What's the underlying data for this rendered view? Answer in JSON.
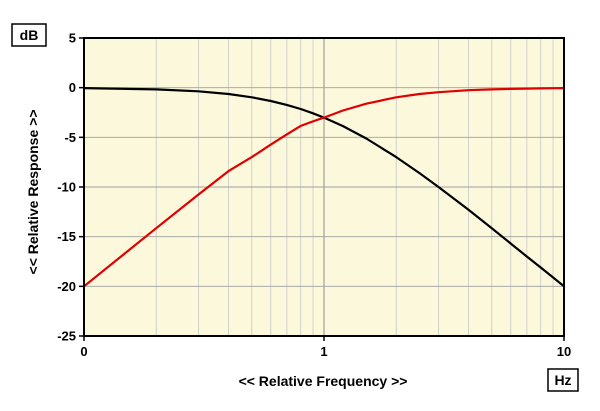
{
  "chart_data": {
    "type": "line",
    "title": "",
    "xlabel": "<< Relative Frequency >>",
    "ylabel": "<< Relative Response >>",
    "x_unit": "Hz",
    "y_unit": "dB",
    "x_scale": "log",
    "xlim": [
      0.1,
      10
    ],
    "ylim": [
      -25,
      5
    ],
    "x_ticks": [
      {
        "value": 0.1,
        "label": "0"
      },
      {
        "value": 1,
        "label": "1"
      },
      {
        "value": 10,
        "label": "10"
      }
    ],
    "y_ticks": [
      {
        "value": 5,
        "label": "5"
      },
      {
        "value": 0,
        "label": "0"
      },
      {
        "value": -5,
        "label": "-5"
      },
      {
        "value": -10,
        "label": "-10"
      },
      {
        "value": -15,
        "label": "-15"
      },
      {
        "value": -20,
        "label": "-20"
      },
      {
        "value": -25,
        "label": "-25"
      }
    ],
    "grid": true,
    "legend": "none",
    "colors": {
      "background": "#fbf8dc",
      "grid": "#c8c8c8",
      "grid_major": "#a0a0a0"
    },
    "series": [
      {
        "color": "#000000",
        "x": [
          0.1,
          0.2,
          0.3,
          0.4,
          0.5,
          0.6,
          0.7,
          0.8,
          0.9,
          1,
          1.2,
          1.5,
          2,
          2.5,
          3,
          4,
          5,
          6,
          7,
          8,
          9,
          10
        ],
        "y": [
          -0.04,
          -0.17,
          -0.37,
          -0.64,
          -0.97,
          -1.34,
          -1.73,
          -2.15,
          -2.58,
          -3.01,
          -3.87,
          -5.12,
          -6.99,
          -8.6,
          -10.0,
          -12.3,
          -14.15,
          -15.7,
          -17.0,
          -18.1,
          -19.1,
          -20.0
        ]
      },
      {
        "color": "#e00000",
        "x": [
          0.1,
          0.2,
          0.3,
          0.4,
          0.5,
          0.6,
          0.7,
          0.8,
          0.9,
          1,
          1.2,
          1.5,
          2,
          2.5,
          3,
          4,
          5,
          6,
          7,
          8,
          9,
          10
        ],
        "y": [
          -20.0,
          -14.15,
          -10.75,
          -8.4,
          -6.99,
          -5.73,
          -4.7,
          -3.85,
          -3.4,
          -3.01,
          -2.3,
          -1.61,
          -0.97,
          -0.64,
          -0.46,
          -0.26,
          -0.17,
          -0.12,
          -0.09,
          -0.07,
          -0.05,
          -0.04
        ]
      }
    ]
  }
}
